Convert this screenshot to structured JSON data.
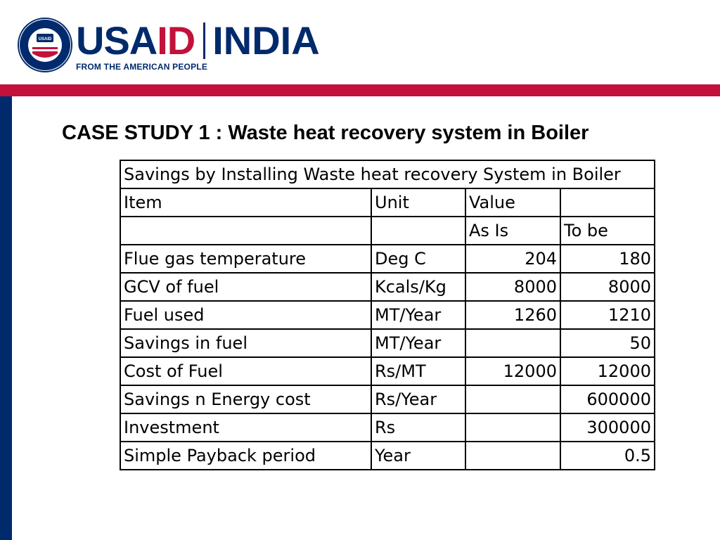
{
  "header": {
    "logo_usaid_part1": "USA",
    "logo_usaid_part2": "ID",
    "logo_country": "INDIA",
    "logo_tagline": "FROM THE AMERICAN PEOPLE",
    "seal_text": "UNITED STATES AGENCY · INTERNATIONAL DEVELOPMENT · USAID",
    "colors": {
      "navy": "#002a6c",
      "red": "#c2113a"
    }
  },
  "slide": {
    "title": "CASE STUDY 1 : Waste heat recovery system in Boiler"
  },
  "table": {
    "caption": "Savings by Installing Waste heat recovery System in Boiler",
    "header": {
      "item": "Item",
      "unit": "Unit",
      "value": "Value"
    },
    "subheader": {
      "as_is": "As Is",
      "to_be": "To be"
    },
    "rows": [
      {
        "item": "Flue gas temperature",
        "unit": "Deg C",
        "as_is": "204",
        "to_be": "180"
      },
      {
        "item": "GCV of fuel",
        "unit": "Kcals/Kg",
        "as_is": "8000",
        "to_be": "8000"
      },
      {
        "item": "Fuel used",
        "unit": "MT/Year",
        "as_is": "1260",
        "to_be": "1210"
      },
      {
        "item": "Savings in fuel",
        "unit": "MT/Year",
        "as_is": "",
        "to_be": "50"
      },
      {
        "item": "Cost of Fuel",
        "unit": "Rs/MT",
        "as_is": "12000",
        "to_be": "12000"
      },
      {
        "item": "Savings n Energy cost",
        "unit": "Rs/Year",
        "as_is": "",
        "to_be": "600000"
      },
      {
        "item": "Investment",
        "unit": "Rs",
        "as_is": "",
        "to_be": "300000"
      },
      {
        "item": "Simple Payback period",
        "unit": "Year",
        "as_is": "",
        "to_be": "0.5"
      }
    ]
  }
}
